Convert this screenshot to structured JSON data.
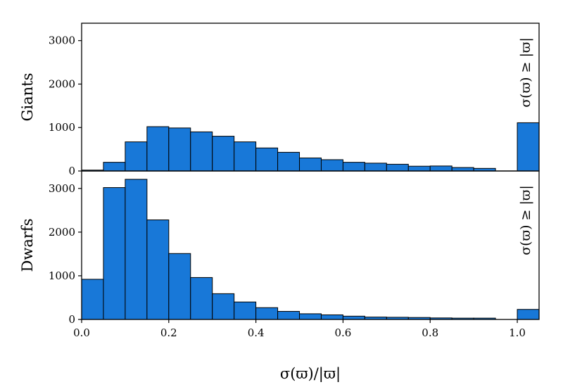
{
  "colors": {
    "bar": "#1878d8",
    "edge": "#000000",
    "background": "#ffffff"
  },
  "chart_data": [
    {
      "type": "bar",
      "panel": "top",
      "ylabel": "Giants",
      "annotation": "σ(ϖ) ≥ |ϖ|",
      "bin_edges": [
        0,
        0.05,
        0.1,
        0.15,
        0.2,
        0.25,
        0.3,
        0.35,
        0.4,
        0.45,
        0.5,
        0.55,
        0.6,
        0.65,
        0.7,
        0.75,
        0.8,
        0.85,
        0.9,
        0.95,
        1.0,
        1.05
      ],
      "values": [
        20,
        200,
        670,
        1020,
        990,
        900,
        800,
        670,
        530,
        430,
        300,
        260,
        200,
        180,
        155,
        110,
        115,
        80,
        60,
        0,
        1110
      ],
      "ylim": [
        0,
        3400
      ],
      "yticks": [
        0,
        1000,
        2000,
        3000
      ],
      "ytick_labels": [
        "0",
        "1000",
        "2000",
        "3000"
      ],
      "xlim": [
        0,
        1.05
      ],
      "grid": false
    },
    {
      "type": "bar",
      "panel": "bottom",
      "ylabel": "Dwarfs",
      "xlabel": "σ(ϖ)/|ϖ|",
      "annotation": "σ(ϖ) ≥ |ϖ|",
      "bin_edges": [
        0,
        0.05,
        0.1,
        0.15,
        0.2,
        0.25,
        0.3,
        0.35,
        0.4,
        0.45,
        0.5,
        0.55,
        0.6,
        0.65,
        0.7,
        0.75,
        0.8,
        0.85,
        0.9,
        0.95,
        1.0,
        1.05
      ],
      "values": [
        920,
        3020,
        3210,
        2280,
        1510,
        960,
        590,
        400,
        270,
        185,
        130,
        105,
        75,
        55,
        50,
        45,
        35,
        30,
        30,
        0,
        230
      ],
      "ylim": [
        0,
        3400
      ],
      "yticks": [
        0,
        1000,
        2000,
        3000
      ],
      "ytick_labels": [
        "0",
        "1000",
        "2000",
        "3000"
      ],
      "xlim": [
        0,
        1.05
      ],
      "xticks": [
        0.0,
        0.2,
        0.4,
        0.6,
        0.8,
        1.0
      ],
      "xtick_labels": [
        "0.0",
        "0.2",
        "0.4",
        "0.6",
        "0.8",
        "1.0"
      ],
      "grid": false
    }
  ]
}
